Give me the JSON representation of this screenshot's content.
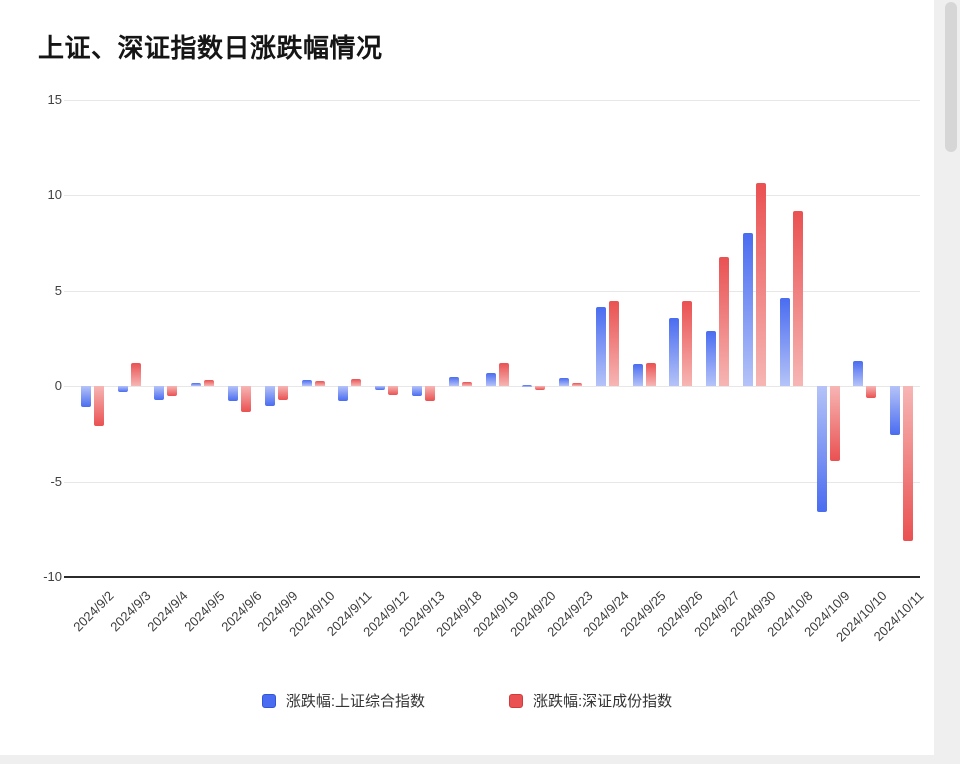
{
  "chart_data": {
    "type": "bar",
    "title": "上证、深证指数日涨跌幅情况",
    "categories": [
      "2024/9/2",
      "2024/9/3",
      "2024/9/4",
      "2024/9/5",
      "2024/9/6",
      "2024/9/9",
      "2024/9/10",
      "2024/9/11",
      "2024/9/12",
      "2024/9/13",
      "2024/9/18",
      "2024/9/19",
      "2024/9/20",
      "2024/9/23",
      "2024/9/24",
      "2024/9/25",
      "2024/9/26",
      "2024/9/27",
      "2024/9/30",
      "2024/10/8",
      "2024/10/9",
      "2024/10/10",
      "2024/10/11"
    ],
    "series": [
      {
        "key": "sse",
        "name": "涨跌幅:上证综合指数",
        "color": "#4a6cf0",
        "color_light": "#b5c3f8",
        "color_dark": "#3356d6",
        "values": [
          -1.1,
          -0.3,
          -0.7,
          0.15,
          -0.8,
          -1.05,
          0.3,
          -0.8,
          -0.2,
          -0.5,
          0.5,
          0.7,
          0.05,
          0.45,
          4.15,
          1.15,
          3.6,
          2.9,
          8.05,
          4.6,
          -6.6,
          1.3,
          -2.55
        ]
      },
      {
        "key": "szse",
        "name": "涨跌幅:深证成份指数",
        "color": "#ea5152",
        "color_light": "#f6b6b4",
        "color_dark": "#d03c3d",
        "values": [
          -2.1,
          1.2,
          -0.5,
          0.3,
          -1.35,
          -0.75,
          0.25,
          0.4,
          -0.45,
          -0.8,
          0.2,
          1.2,
          -0.2,
          0.15,
          4.45,
          1.2,
          4.45,
          6.75,
          10.65,
          9.2,
          -3.9,
          -0.6,
          -8.1
        ]
      }
    ],
    "ylim": [
      -10,
      15
    ],
    "yticks": [
      15,
      10,
      5,
      0,
      -5,
      -10
    ],
    "grid": true,
    "legend_position": "bottom"
  }
}
